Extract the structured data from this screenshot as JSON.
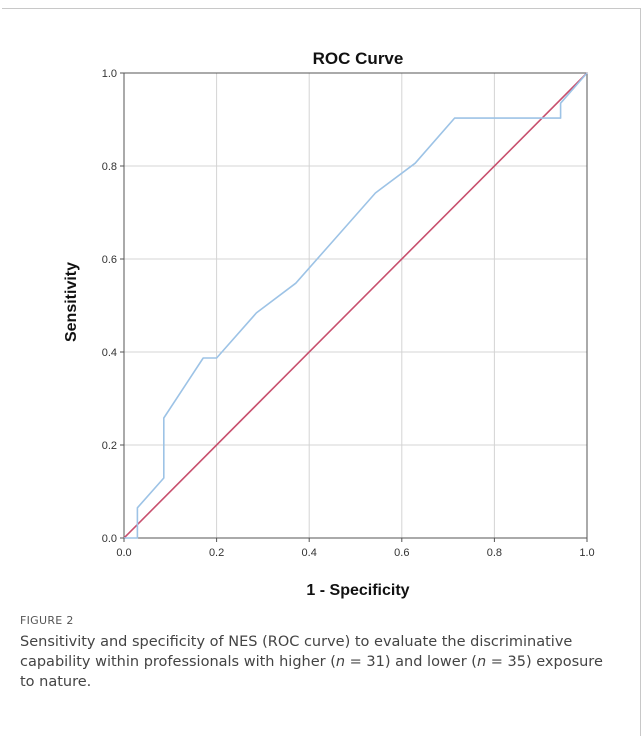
{
  "chart_data": {
    "type": "line",
    "title": "ROC Curve",
    "xlabel": "1 - Specificity",
    "ylabel": "Sensitivity",
    "xlim": [
      0,
      1
    ],
    "ylim": [
      0,
      1
    ],
    "grid": true,
    "x_ticks": [
      "0.0",
      "0.2",
      "0.4",
      "0.6",
      "0.8",
      "1.0"
    ],
    "y_ticks": [
      "0.0",
      "0.2",
      "0.4",
      "0.6",
      "0.8",
      "1.0"
    ],
    "series": [
      {
        "color": "#9dc3e6",
        "x": [
          0.0,
          0.029,
          0.029,
          0.086,
          0.086,
          0.171,
          0.2,
          0.286,
          0.371,
          0.457,
          0.543,
          0.629,
          0.714,
          0.943,
          0.943,
          1.0
        ],
        "y": [
          0.0,
          0.0,
          0.065,
          0.129,
          0.258,
          0.387,
          0.387,
          0.484,
          0.548,
          0.645,
          0.742,
          0.806,
          0.903,
          0.903,
          0.935,
          1.0
        ]
      },
      {
        "color": "#c8506e",
        "x": [
          0,
          1
        ],
        "y": [
          0,
          1
        ]
      }
    ]
  },
  "figure_label": "FIGURE 2",
  "caption": {
    "part1": "Sensitivity and specificity of NES (ROC curve) to evaluate the discriminative capability within professionals with higher (",
    "n_symbol_1": "n",
    "part2": " = 31) and lower (",
    "n_symbol_2": "n",
    "part3": " = 35) exposure to nature."
  }
}
